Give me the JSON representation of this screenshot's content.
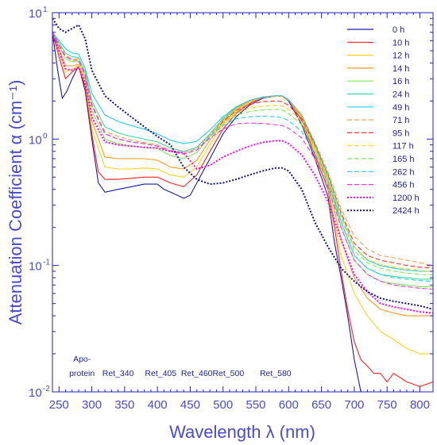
{
  "chart_data": {
    "type": "line",
    "xlabel": "Wavelength λ (nm)",
    "ylabel": "Attenuation Coefficient α (cm⁻¹)",
    "x_scale": "linear",
    "y_scale": "log",
    "xlim": [
      240,
      820
    ],
    "ylim": [
      0.01,
      10
    ],
    "grid": false,
    "legend_position": "top-right",
    "x_ticks": [
      250,
      300,
      350,
      400,
      450,
      500,
      550,
      600,
      650,
      700,
      750,
      800
    ],
    "y_ticks": [
      {
        "value": 0.01,
        "base": "10",
        "exp": "-2"
      },
      {
        "value": 0.1,
        "base": "10",
        "exp": "-1"
      },
      {
        "value": 1,
        "base": "10",
        "exp": "0"
      },
      {
        "value": 10,
        "base": "10",
        "exp": "1"
      }
    ],
    "annotations": [
      {
        "text": "Apo-",
        "x": 285,
        "row": 1
      },
      {
        "text": "protein",
        "x": 285,
        "row": 2
      },
      {
        "text": "Ret_340",
        "x": 340,
        "row": 2
      },
      {
        "text": "Ret_405",
        "x": 405,
        "row": 2
      },
      {
        "text": "Ret_460",
        "x": 460,
        "row": 2
      },
      {
        "text": "Ret_500",
        "x": 508,
        "row": 2
      },
      {
        "text": "Ret_580",
        "x": 580,
        "row": 2
      }
    ],
    "series": [
      {
        "name": "0 h",
        "color": "#1a1aa6",
        "dash": "solid",
        "x": [
          240,
          248,
          255,
          262,
          270,
          280,
          290,
          300,
          310,
          320,
          340,
          360,
          380,
          390,
          400,
          410,
          420,
          430,
          440,
          450,
          460,
          480,
          500,
          520,
          540,
          560,
          580,
          590,
          600,
          620,
          640,
          660,
          670,
          680,
          690,
          700,
          710
        ],
        "y": [
          7.0,
          3.5,
          2.1,
          2.4,
          3.0,
          3.8,
          2.4,
          1.0,
          0.45,
          0.38,
          0.4,
          0.42,
          0.44,
          0.44,
          0.44,
          0.4,
          0.38,
          0.36,
          0.34,
          0.36,
          0.45,
          0.7,
          1.1,
          1.5,
          1.85,
          2.1,
          2.2,
          2.2,
          2.0,
          1.3,
          0.7,
          0.35,
          0.15,
          0.08,
          0.04,
          0.018,
          0.01
        ]
      },
      {
        "name": "10 h",
        "color": "#ff2020",
        "dash": "solid",
        "x": [
          240,
          250,
          260,
          270,
          280,
          290,
          300,
          310,
          320,
          340,
          360,
          380,
          400,
          420,
          440,
          460,
          480,
          500,
          520,
          540,
          560,
          580,
          590,
          600,
          620,
          640,
          660,
          670,
          680,
          690,
          700,
          710,
          720,
          730,
          740,
          750,
          760,
          780,
          800,
          820
        ],
        "y": [
          7.0,
          4.5,
          3.0,
          3.4,
          3.7,
          2.6,
          1.1,
          0.55,
          0.48,
          0.48,
          0.49,
          0.5,
          0.5,
          0.45,
          0.42,
          0.52,
          0.8,
          1.2,
          1.6,
          1.9,
          2.15,
          2.2,
          2.2,
          2.05,
          1.4,
          0.75,
          0.4,
          0.2,
          0.09,
          0.045,
          0.025,
          0.018,
          0.016,
          0.014,
          0.014,
          0.012,
          0.014,
          0.012,
          0.011,
          0.012
        ]
      },
      {
        "name": "12 h",
        "color": "#ffd21a",
        "dash": "solid",
        "x": [
          240,
          250,
          260,
          270,
          280,
          290,
          300,
          320,
          340,
          360,
          380,
          400,
          420,
          440,
          460,
          480,
          500,
          520,
          540,
          560,
          580,
          590,
          600,
          620,
          640,
          660,
          680,
          700,
          720,
          740,
          760,
          780,
          800,
          820
        ],
        "y": [
          7.0,
          5.0,
          3.4,
          3.6,
          3.8,
          2.8,
          1.2,
          0.6,
          0.58,
          0.58,
          0.59,
          0.58,
          0.52,
          0.5,
          0.6,
          0.9,
          1.3,
          1.65,
          1.95,
          2.15,
          2.2,
          2.2,
          2.05,
          1.45,
          0.8,
          0.42,
          0.12,
          0.06,
          0.04,
          0.03,
          0.026,
          0.022,
          0.02,
          0.02
        ]
      },
      {
        "name": "14 h",
        "color": "#ff9a1a",
        "dash": "solid",
        "x": [
          240,
          250,
          260,
          270,
          280,
          290,
          300,
          320,
          340,
          360,
          380,
          400,
          420,
          440,
          460,
          480,
          500,
          520,
          540,
          560,
          580,
          590,
          600,
          620,
          640,
          660,
          680,
          700,
          720,
          740,
          760,
          780,
          800,
          820
        ],
        "y": [
          7.0,
          5.2,
          3.8,
          3.8,
          3.9,
          3.0,
          1.4,
          0.72,
          0.7,
          0.7,
          0.7,
          0.68,
          0.6,
          0.58,
          0.68,
          0.98,
          1.35,
          1.7,
          2.0,
          2.15,
          2.2,
          2.2,
          2.05,
          1.5,
          0.85,
          0.45,
          0.16,
          0.08,
          0.055,
          0.045,
          0.042,
          0.04,
          0.04,
          0.04
        ]
      },
      {
        "name": "16 h",
        "color": "#7ee85a",
        "dash": "solid",
        "x": [
          240,
          250,
          260,
          270,
          280,
          290,
          300,
          320,
          340,
          360,
          380,
          400,
          420,
          440,
          460,
          480,
          500,
          520,
          540,
          560,
          580,
          590,
          600,
          620,
          640,
          660,
          680,
          700,
          720,
          740,
          760,
          780,
          800,
          820
        ],
        "y": [
          7.0,
          5.5,
          4.3,
          4.1,
          4.1,
          3.2,
          1.7,
          1.0,
          0.92,
          0.88,
          0.86,
          0.84,
          0.74,
          0.7,
          0.78,
          1.05,
          1.4,
          1.75,
          2.0,
          2.15,
          2.2,
          2.2,
          2.05,
          1.52,
          0.88,
          0.48,
          0.2,
          0.11,
          0.085,
          0.075,
          0.072,
          0.07,
          0.068,
          0.068
        ]
      },
      {
        "name": "24 h",
        "color": "#3fd8a0",
        "dash": "solid",
        "x": [
          240,
          250,
          260,
          270,
          280,
          290,
          300,
          320,
          340,
          360,
          380,
          400,
          420,
          440,
          460,
          480,
          500,
          520,
          540,
          560,
          580,
          590,
          600,
          620,
          640,
          660,
          680,
          700,
          720,
          740,
          760,
          780,
          800,
          820
        ],
        "y": [
          7.0,
          5.8,
          4.8,
          4.5,
          4.4,
          3.4,
          2.0,
          1.25,
          1.12,
          1.05,
          1.0,
          0.95,
          0.85,
          0.8,
          0.86,
          1.1,
          1.45,
          1.78,
          2.02,
          2.15,
          2.2,
          2.2,
          2.05,
          1.55,
          0.9,
          0.5,
          0.22,
          0.12,
          0.095,
          0.085,
          0.082,
          0.08,
          0.078,
          0.078
        ]
      },
      {
        "name": "49 h",
        "color": "#29c8f0",
        "dash": "solid",
        "x": [
          240,
          250,
          260,
          270,
          280,
          290,
          300,
          320,
          340,
          360,
          380,
          400,
          420,
          440,
          460,
          480,
          500,
          520,
          540,
          560,
          580,
          590,
          600,
          620,
          640,
          660,
          680,
          700,
          720,
          740,
          760,
          780,
          800,
          820
        ],
        "y": [
          7.0,
          6.0,
          5.2,
          4.8,
          4.7,
          3.6,
          2.3,
          1.55,
          1.38,
          1.28,
          1.2,
          1.1,
          0.98,
          0.92,
          0.96,
          1.18,
          1.5,
          1.8,
          2.02,
          2.15,
          2.2,
          2.2,
          2.05,
          1.55,
          0.92,
          0.52,
          0.25,
          0.14,
          0.11,
          0.1,
          0.095,
          0.092,
          0.09,
          0.09
        ]
      },
      {
        "name": "71 h",
        "color": "#f0a050",
        "dash": "dash",
        "x": [
          240,
          250,
          260,
          270,
          280,
          290,
          300,
          320,
          340,
          360,
          380,
          400,
          420,
          440,
          460,
          480,
          500,
          520,
          540,
          560,
          580,
          590,
          600,
          620,
          640,
          660,
          680,
          700,
          720,
          740,
          760,
          780,
          800,
          820
        ],
        "y": [
          7.0,
          5.6,
          4.6,
          4.3,
          4.3,
          3.3,
          1.9,
          1.15,
          1.05,
          0.98,
          0.94,
          0.9,
          0.82,
          0.78,
          0.84,
          1.08,
          1.42,
          1.75,
          2.0,
          2.12,
          2.18,
          2.18,
          2.02,
          1.55,
          0.95,
          0.55,
          0.28,
          0.17,
          0.135,
          0.12,
          0.115,
          0.11,
          0.105,
          0.1
        ]
      },
      {
        "name": "95 h",
        "color": "#ff3030",
        "dash": "dash",
        "x": [
          240,
          250,
          260,
          270,
          280,
          290,
          300,
          320,
          340,
          360,
          380,
          400,
          420,
          440,
          460,
          480,
          500,
          520,
          540,
          560,
          580,
          590,
          600,
          620,
          640,
          660,
          680,
          700,
          720,
          740,
          760,
          780,
          800,
          820
        ],
        "y": [
          7.0,
          5.5,
          4.5,
          4.2,
          4.2,
          3.2,
          1.85,
          1.1,
          1.0,
          0.95,
          0.92,
          0.88,
          0.8,
          0.76,
          0.82,
          1.05,
          1.38,
          1.68,
          1.88,
          1.98,
          2.0,
          1.98,
          1.85,
          1.45,
          0.9,
          0.52,
          0.26,
          0.15,
          0.12,
          0.11,
          0.105,
          0.1,
          0.097,
          0.095
        ]
      },
      {
        "name": "117 h",
        "color": "#ffd21a",
        "dash": "dash",
        "x": [
          240,
          250,
          260,
          270,
          280,
          290,
          300,
          320,
          340,
          360,
          380,
          400,
          420,
          440,
          460,
          480,
          500,
          520,
          540,
          560,
          580,
          590,
          600,
          620,
          640,
          660,
          680,
          700,
          720,
          740,
          760,
          780,
          800,
          820
        ],
        "y": [
          7.0,
          5.5,
          4.5,
          4.2,
          4.2,
          3.2,
          1.85,
          1.1,
          1.0,
          0.95,
          0.92,
          0.88,
          0.8,
          0.76,
          0.82,
          1.05,
          1.35,
          1.6,
          1.75,
          1.82,
          1.85,
          1.83,
          1.72,
          1.38,
          0.88,
          0.5,
          0.25,
          0.14,
          0.112,
          0.102,
          0.097,
          0.094,
          0.091,
          0.09
        ]
      },
      {
        "name": "165 h",
        "color": "#7ee85a",
        "dash": "dash",
        "x": [
          240,
          250,
          260,
          270,
          280,
          290,
          300,
          320,
          340,
          360,
          380,
          400,
          420,
          440,
          460,
          480,
          500,
          520,
          540,
          560,
          580,
          590,
          600,
          620,
          640,
          660,
          680,
          700,
          720,
          740,
          760,
          780,
          800,
          820
        ],
        "y": [
          7.0,
          5.5,
          4.5,
          4.2,
          4.2,
          3.2,
          1.85,
          1.1,
          1.0,
          0.95,
          0.92,
          0.88,
          0.8,
          0.76,
          0.82,
          1.05,
          1.32,
          1.55,
          1.65,
          1.7,
          1.72,
          1.7,
          1.6,
          1.3,
          0.85,
          0.48,
          0.24,
          0.13,
          0.105,
          0.095,
          0.09,
          0.087,
          0.085,
          0.084
        ]
      },
      {
        "name": "262 h",
        "color": "#29c8f0",
        "dash": "dash",
        "x": [
          240,
          250,
          260,
          270,
          280,
          290,
          300,
          320,
          340,
          360,
          380,
          400,
          420,
          440,
          460,
          480,
          500,
          520,
          540,
          560,
          580,
          590,
          600,
          620,
          640,
          660,
          680,
          700,
          720,
          740,
          760,
          780,
          800,
          820
        ],
        "y": [
          7.0,
          5.5,
          4.5,
          4.2,
          4.2,
          3.2,
          1.85,
          1.1,
          1.0,
          0.95,
          0.92,
          0.88,
          0.8,
          0.76,
          0.82,
          1.05,
          1.28,
          1.45,
          1.5,
          1.52,
          1.5,
          1.48,
          1.4,
          1.15,
          0.78,
          0.45,
          0.22,
          0.12,
          0.095,
          0.085,
          0.08,
          0.078,
          0.076,
          0.075
        ]
      },
      {
        "name": "456 h",
        "color": "#ff30e0",
        "dash": "dash",
        "x": [
          240,
          250,
          260,
          270,
          280,
          290,
          300,
          320,
          340,
          360,
          380,
          400,
          420,
          440,
          460,
          480,
          500,
          520,
          540,
          560,
          580,
          590,
          600,
          620,
          640,
          660,
          680,
          700,
          720,
          740,
          760,
          780,
          800,
          820
        ],
        "y": [
          7.0,
          5.5,
          4.5,
          4.2,
          4.2,
          3.2,
          1.85,
          1.1,
          1.0,
          0.95,
          0.92,
          0.88,
          0.8,
          0.76,
          0.82,
          1.02,
          1.2,
          1.32,
          1.34,
          1.33,
          1.3,
          1.28,
          1.22,
          1.02,
          0.7,
          0.42,
          0.2,
          0.11,
          0.085,
          0.075,
          0.07,
          0.068,
          0.066,
          0.065
        ]
      },
      {
        "name": "1200 h",
        "color": "#ff00ff",
        "dash": "dot",
        "x": [
          240,
          250,
          260,
          270,
          280,
          290,
          300,
          320,
          340,
          360,
          380,
          400,
          420,
          440,
          460,
          480,
          500,
          520,
          540,
          560,
          580,
          590,
          600,
          620,
          640,
          660,
          680,
          700,
          720,
          740,
          760,
          780,
          800,
          820
        ],
        "y": [
          7.0,
          5.0,
          3.6,
          3.5,
          3.7,
          2.8,
          1.5,
          0.95,
          0.9,
          0.88,
          0.86,
          0.85,
          0.8,
          0.78,
          0.58,
          0.62,
          0.72,
          0.8,
          0.88,
          0.94,
          0.97,
          0.97,
          0.92,
          0.75,
          0.52,
          0.32,
          0.16,
          0.085,
          0.062,
          0.05,
          0.047,
          0.045,
          0.043,
          0.042
        ]
      },
      {
        "name": "2424 h",
        "color": "#10108a",
        "dash": "dot",
        "x": [
          240,
          250,
          260,
          270,
          280,
          290,
          300,
          320,
          340,
          360,
          380,
          400,
          420,
          440,
          460,
          480,
          500,
          520,
          540,
          560,
          580,
          590,
          600,
          620,
          640,
          660,
          680,
          700,
          720,
          740,
          760,
          780,
          800,
          820
        ],
        "y": [
          9.0,
          7.5,
          7.0,
          7.5,
          8.0,
          6.2,
          3.5,
          2.2,
          1.8,
          1.5,
          1.25,
          1.05,
          0.9,
          0.6,
          0.48,
          0.44,
          0.45,
          0.48,
          0.52,
          0.56,
          0.59,
          0.59,
          0.56,
          0.4,
          0.22,
          0.14,
          0.095,
          0.075,
          0.062,
          0.055,
          0.052,
          0.05,
          0.048,
          0.045
        ]
      }
    ]
  }
}
